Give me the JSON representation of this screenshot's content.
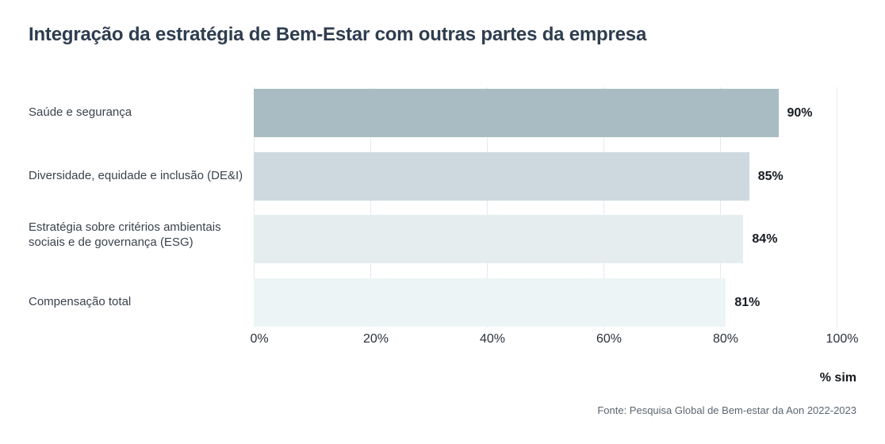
{
  "page": {
    "title": "Integração da estratégia de Bem-Estar com outras partes da empresa",
    "axis_note": "% sim",
    "source": "Fonte: Pesquisa Global de Bem-estar da Aon 2022-2023"
  },
  "chart_data": {
    "type": "bar",
    "orientation": "horizontal",
    "title": "Integração da estratégia de Bem-Estar com outras partes da empresa",
    "categories": [
      "Saúde e segurança",
      "Diversidade, equidade e inclusão (DE&I)",
      "Estratégia sobre critérios ambientais sociais e de governança (ESG)",
      "Compensação total"
    ],
    "values": [
      90,
      85,
      84,
      81
    ],
    "value_labels": [
      "90%",
      "85%",
      "84%",
      "81%"
    ],
    "bar_colors": [
      "#a9bcc3",
      "#cdd9de",
      "#e5edef",
      "#edf4f5"
    ],
    "x_ticks": [
      "0%",
      "20%",
      "40%",
      "60%",
      "80%",
      "100%"
    ],
    "xlim": [
      0,
      100
    ],
    "xlabel": "% sim",
    "grid": true,
    "gridline_color": "#e3ebed",
    "legend": "none",
    "source": "Fonte: Pesquisa Global de Bem-estar da Aon 2022-2023"
  },
  "colors": {
    "background": "#ffffff",
    "title": "#2e3d4f",
    "category_label": "#3a424c",
    "value_label": "#171c22",
    "tick_label": "#2b323c",
    "axis_note": "#14181d",
    "source": "#5b6670"
  }
}
